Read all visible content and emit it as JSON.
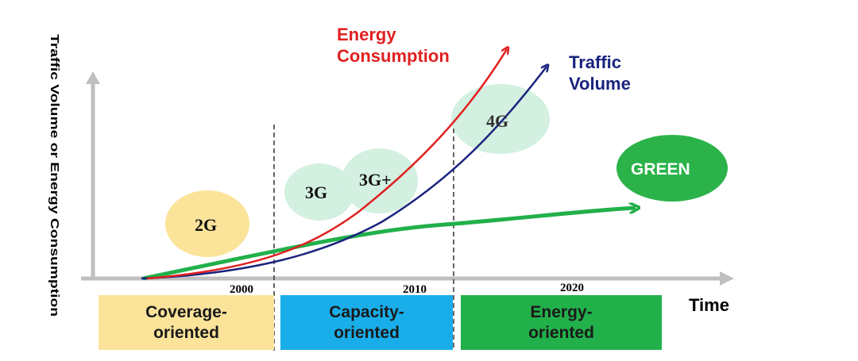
{
  "axes": {
    "y_label": "Traffic Volume or Energy Consumption",
    "x_label": "Time",
    "years": [
      "2000",
      "2010",
      "2020"
    ]
  },
  "curves": {
    "energy": {
      "label_line1": "Energy",
      "label_line2": "Consumption",
      "color": "#e02020"
    },
    "traffic": {
      "label_line1": "Traffic",
      "label_line2": "Volume",
      "color": "#1a237e"
    },
    "green": {
      "color": "#22b04b"
    }
  },
  "generations": {
    "g2": "2G",
    "g3": "3G",
    "g3plus": "3G+",
    "g4": "4G",
    "green": "GREEN"
  },
  "eras": [
    {
      "line1": "Coverage-",
      "line2": "oriented",
      "color": "#fbe39a"
    },
    {
      "line1": "Capacity-",
      "line2": "oriented",
      "color": "#19aeea"
    },
    {
      "line1": "Energy-",
      "line2": "oriented",
      "color": "#22b04b"
    }
  ],
  "colors": {
    "axis": "#bfbfbf",
    "bubble_2g": "#fbe39a",
    "bubble_3g": "#d3f0e1",
    "bubble_green": "#2bb34a"
  }
}
